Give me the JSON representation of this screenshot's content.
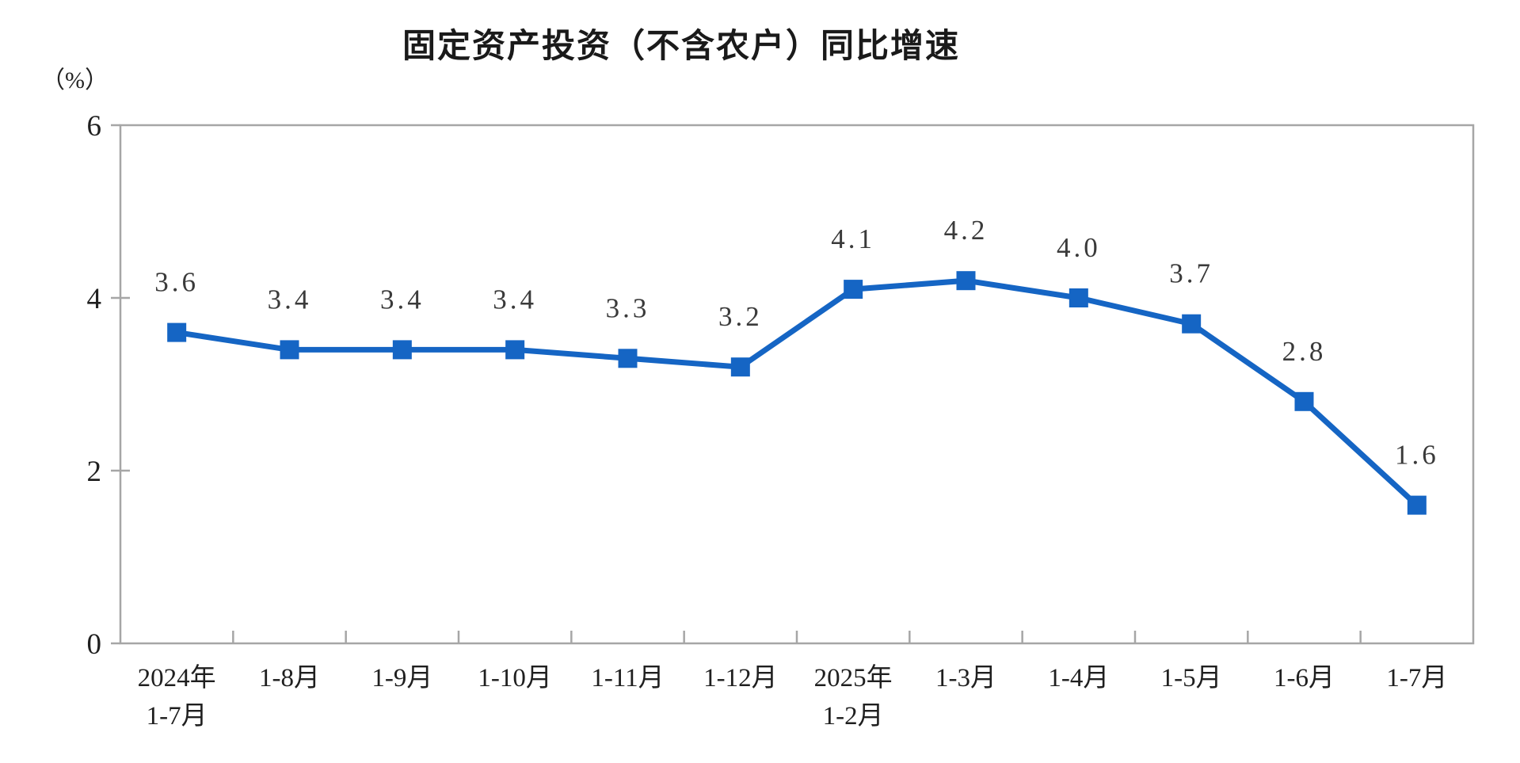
{
  "chart_data": {
    "type": "line",
    "title": "固定资产投资（不含农户）同比增速",
    "unit_label": "（%）",
    "categories": [
      "2024年\n1-7月",
      "1-8月",
      "1-9月",
      "1-10月",
      "1-11月",
      "1-12月",
      "2025年\n1-2月",
      "1-3月",
      "1-4月",
      "1-5月",
      "1-6月",
      "1-7月"
    ],
    "series": [
      {
        "name": "固定资产投资（不含农户）同比增速",
        "values": [
          3.6,
          3.4,
          3.4,
          3.4,
          3.3,
          3.2,
          4.1,
          4.2,
          4.0,
          3.7,
          2.8,
          1.6
        ]
      }
    ],
    "data_labels": [
      "3.6",
      "3.4",
      "3.4",
      "3.4",
      "3.3",
      "3.2",
      "4.1",
      "4.2",
      "4.0",
      "3.7",
      "2.8",
      "1.6"
    ],
    "y_ticks": [
      "0",
      "2",
      "4",
      "6"
    ],
    "y_tick_values": [
      0,
      2,
      4,
      6
    ],
    "ylim": [
      0,
      6
    ],
    "xlabel": "",
    "ylabel": "（%）",
    "legend": "none",
    "grid": "off",
    "marker": "square",
    "colors": {
      "line": "#1565c4",
      "marker": "#1565c4",
      "axis_border": "#a6a6a6",
      "title_text": "#1a1a1a",
      "label_text": "#3a3a3a",
      "background": "#ffffff"
    }
  }
}
